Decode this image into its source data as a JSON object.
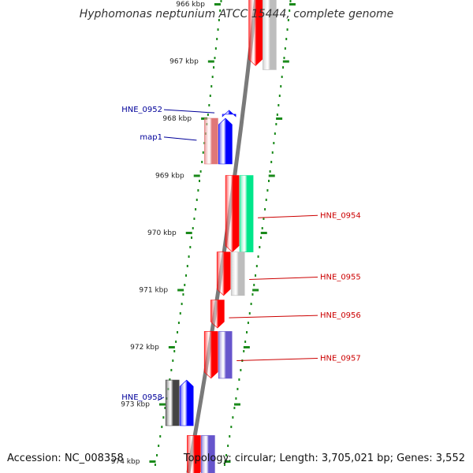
{
  "title": "Hyphomonas neptunium ATCC 15444, complete genome",
  "footer": {
    "accession": "Accession: NC_008358",
    "summary": "Topology: circular; Length: 3,705,021 bp; Genes: 3,552"
  },
  "colors": {
    "forward_gene": "#0000ff",
    "reverse_gene": "#ff0000",
    "gray_feature": "#bdbdbd",
    "teal_feature": "#00e68a",
    "purple_feature": "#6655cc",
    "pink_feature": "#e07777",
    "dark_feature": "#444444",
    "tick": "#1a8a1a",
    "forward_label": "#000099",
    "reverse_label": "#cc0000"
  },
  "axis": {
    "ticks_kbp": [
      966,
      967,
      968,
      969,
      970,
      971,
      972,
      973,
      974
    ],
    "tick_labels": [
      "966 kbp",
      "967 kbp",
      "968 kbp",
      "969 kbp",
      "970 kbp",
      "971 kbp",
      "972 kbp",
      "973 kbp",
      "974 kbp"
    ]
  },
  "features": [
    {
      "id": "rev-a",
      "track": "rev1",
      "color": "red",
      "start": 965.75,
      "end": 967.08,
      "arrow": "down"
    },
    {
      "id": "rev-a-gray",
      "track": "rev2",
      "color": "gray",
      "start": 965.75,
      "end": 967.15,
      "arrow": "none"
    },
    {
      "id": "fwd-top-small",
      "track": "fwd1",
      "color": "blue",
      "start": 967.86,
      "end": 967.93,
      "arrow": "up"
    },
    {
      "id": "map1-pink",
      "track": "fwd2",
      "color": "pink",
      "start": 968.0,
      "end": 968.8,
      "arrow": "none"
    },
    {
      "id": "fwd-b",
      "track": "fwd1",
      "color": "blue",
      "start": 968.0,
      "end": 968.8,
      "arrow": "up"
    },
    {
      "id": "rev-c",
      "track": "rev1",
      "color": "red",
      "start": 969.0,
      "end": 970.34,
      "arrow": "down"
    },
    {
      "id": "hne0954-teal",
      "track": "rev2",
      "color": "teal",
      "start": 969.0,
      "end": 970.34,
      "arrow": "none"
    },
    {
      "id": "rev-d",
      "track": "rev1",
      "color": "red",
      "start": 970.34,
      "end": 971.1,
      "arrow": "down"
    },
    {
      "id": "hne0955-gray",
      "track": "rev2",
      "color": "gray",
      "start": 970.34,
      "end": 971.1,
      "arrow": "none"
    },
    {
      "id": "hne0956-red",
      "track": "rev1",
      "color": "red",
      "start": 971.18,
      "end": 971.67,
      "arrow": "down"
    },
    {
      "id": "hne0957-red",
      "track": "rev1",
      "color": "red",
      "start": 971.73,
      "end": 972.55,
      "arrow": "down"
    },
    {
      "id": "hne0957-purple",
      "track": "rev2",
      "color": "purple",
      "start": 971.73,
      "end": 972.55,
      "arrow": "none"
    },
    {
      "id": "hne0958-dark",
      "track": "fwd2",
      "color": "dark",
      "start": 972.58,
      "end": 973.38,
      "arrow": "none"
    },
    {
      "id": "fwd-e",
      "track": "fwd1",
      "color": "blue",
      "start": 972.58,
      "end": 973.38,
      "arrow": "up"
    },
    {
      "id": "rev-f",
      "track": "rev1",
      "color": "red",
      "start": 973.55,
      "end": 974.3,
      "arrow": "down"
    },
    {
      "id": "rev-f-purple",
      "track": "rev2",
      "color": "purple",
      "start": 973.55,
      "end": 974.3,
      "arrow": "none"
    }
  ],
  "labels": [
    {
      "text": "HNE_0952",
      "side": "left",
      "at_kbp": 967.85,
      "target": "fwd-top-small"
    },
    {
      "text": "map1",
      "side": "left",
      "at_kbp": 968.33,
      "target": "map1-pink"
    },
    {
      "text": "HNE_0954",
      "side": "right",
      "at_kbp": 969.7,
      "target": "hne0954-teal"
    },
    {
      "text": "HNE_0955",
      "side": "right",
      "at_kbp": 970.78,
      "target": "hne0955-gray"
    },
    {
      "text": "HNE_0956",
      "side": "right",
      "at_kbp": 971.45,
      "target": "hne0956-red"
    },
    {
      "text": "HNE_0957",
      "side": "right",
      "at_kbp": 972.2,
      "target": "hne0957-purple"
    },
    {
      "text": "HNE_0958",
      "side": "left",
      "at_kbp": 972.88,
      "target": "hne0958-dark"
    }
  ]
}
